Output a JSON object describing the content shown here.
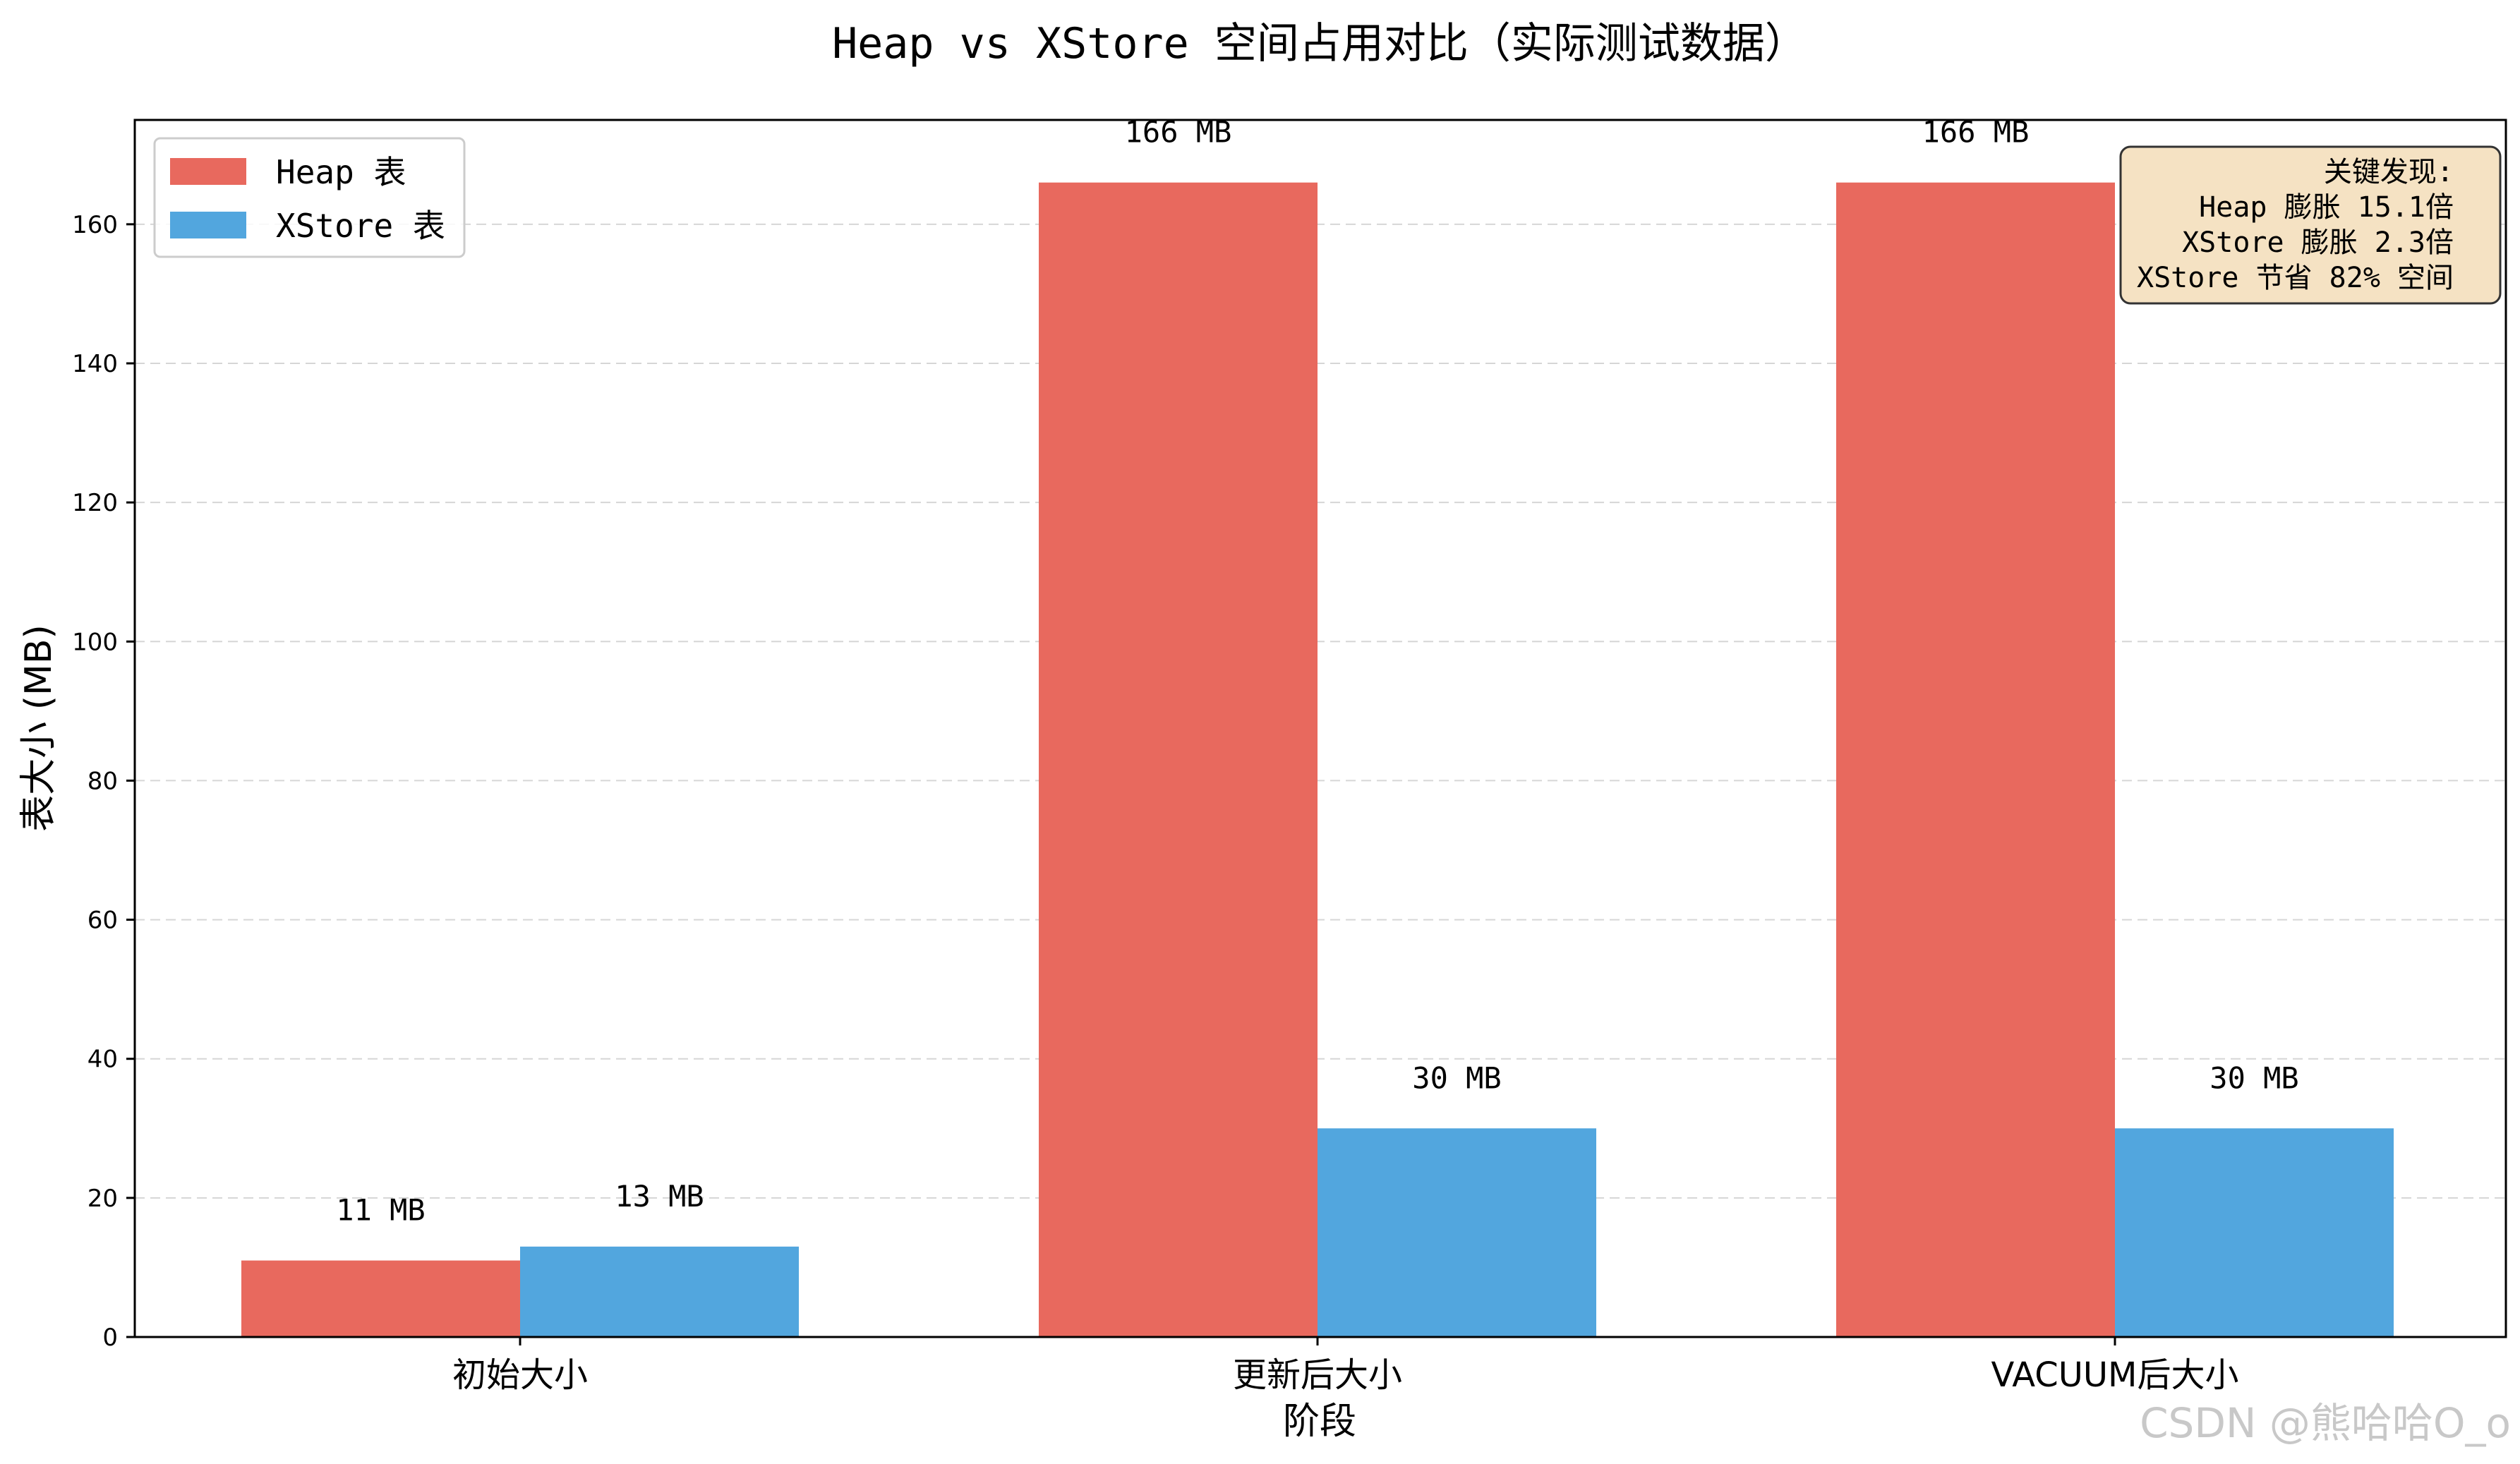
{
  "chart_data": {
    "type": "bar",
    "title": "Heap vs XStore 空间占用对比（实际测试数据）",
    "xlabel": "阶段",
    "ylabel": "表大小 (MB)",
    "categories": [
      "初始大小",
      "更新后大小",
      "VACUUM后大小"
    ],
    "series": [
      {
        "name": "Heap 表",
        "values": [
          11,
          166,
          166
        ],
        "color": "#e8695e",
        "labels": [
          "11 MB",
          "166 MB",
          "166 MB"
        ]
      },
      {
        "name": "XStore 表",
        "values": [
          13,
          30,
          30
        ],
        "color": "#52a6de",
        "labels": [
          "13 MB",
          "30 MB",
          "30 MB"
        ]
      }
    ],
    "ylim": [
      0,
      175
    ],
    "yticks": [
      0,
      20,
      40,
      60,
      80,
      100,
      120,
      140,
      160
    ],
    "grid": true,
    "legend": "top-left",
    "annotation": {
      "lines": [
        "关键发现:",
        "Heap 膨胀 15.1倍",
        "XStore 膨胀 2.3倍",
        "XStore 节省 82% 空间"
      ],
      "background": "#f5e2c3"
    }
  },
  "watermark": "CSDN @熊哈哈O_o"
}
